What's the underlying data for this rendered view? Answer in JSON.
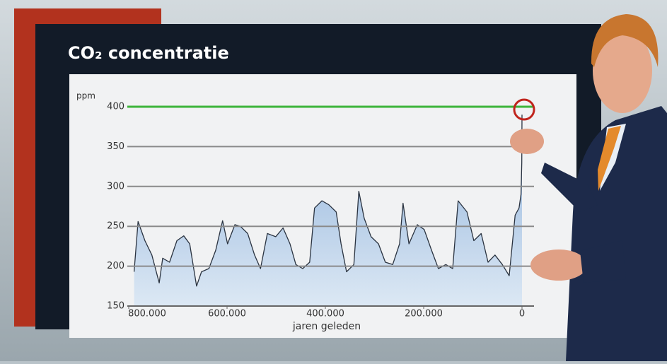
{
  "chart_data": {
    "type": "area",
    "title": "CO₂ concentratie",
    "y_label": "ppm",
    "x_label": "jaren geleden",
    "x": [
      789000,
      781000,
      767000,
      753000,
      738000,
      731000,
      717000,
      702000,
      688000,
      676000,
      662000,
      652000,
      637000,
      623000,
      609000,
      599000,
      584000,
      573000,
      558000,
      544000,
      532000,
      518000,
      501000,
      486000,
      472000,
      460000,
      446000,
      432000,
      422000,
      407000,
      393000,
      378000,
      368000,
      357000,
      342000,
      332000,
      321000,
      307000,
      292000,
      278000,
      263000,
      249000,
      242000,
      230000,
      213000,
      199000,
      184000,
      170000,
      155000,
      141000,
      130000,
      112000,
      98000,
      83000,
      69000,
      55000,
      40000,
      26000,
      14000,
      6000,
      2000,
      500,
      0
    ],
    "values": [
      193,
      256,
      232,
      214,
      179,
      210,
      205,
      232,
      238,
      228,
      175,
      193,
      197,
      220,
      257,
      228,
      252,
      250,
      241,
      214,
      197,
      241,
      237,
      248,
      228,
      202,
      197,
      205,
      273,
      282,
      277,
      268,
      228,
      193,
      202,
      294,
      260,
      237,
      228,
      205,
      202,
      228,
      279,
      228,
      252,
      246,
      220,
      197,
      202,
      197,
      282,
      268,
      232,
      241,
      205,
      214,
      202,
      188,
      264,
      273,
      290,
      330,
      390
    ],
    "color": "#b3cbe6",
    "line_color": "#2a3340",
    "xlim": [
      800000,
      0
    ],
    "xticks": [
      {
        "value": 800000,
        "label": "800.000"
      },
      {
        "value": 600000,
        "label": "600.000"
      },
      {
        "value": 400000,
        "label": "400.000"
      },
      {
        "value": 200000,
        "label": "200.000"
      },
      0
    ],
    "ylim": [
      150,
      400
    ],
    "yticks": [
      150,
      200,
      250,
      300,
      350,
      400
    ],
    "grid": true,
    "reference_line": {
      "value": 400,
      "color": "#3db43a"
    }
  }
}
